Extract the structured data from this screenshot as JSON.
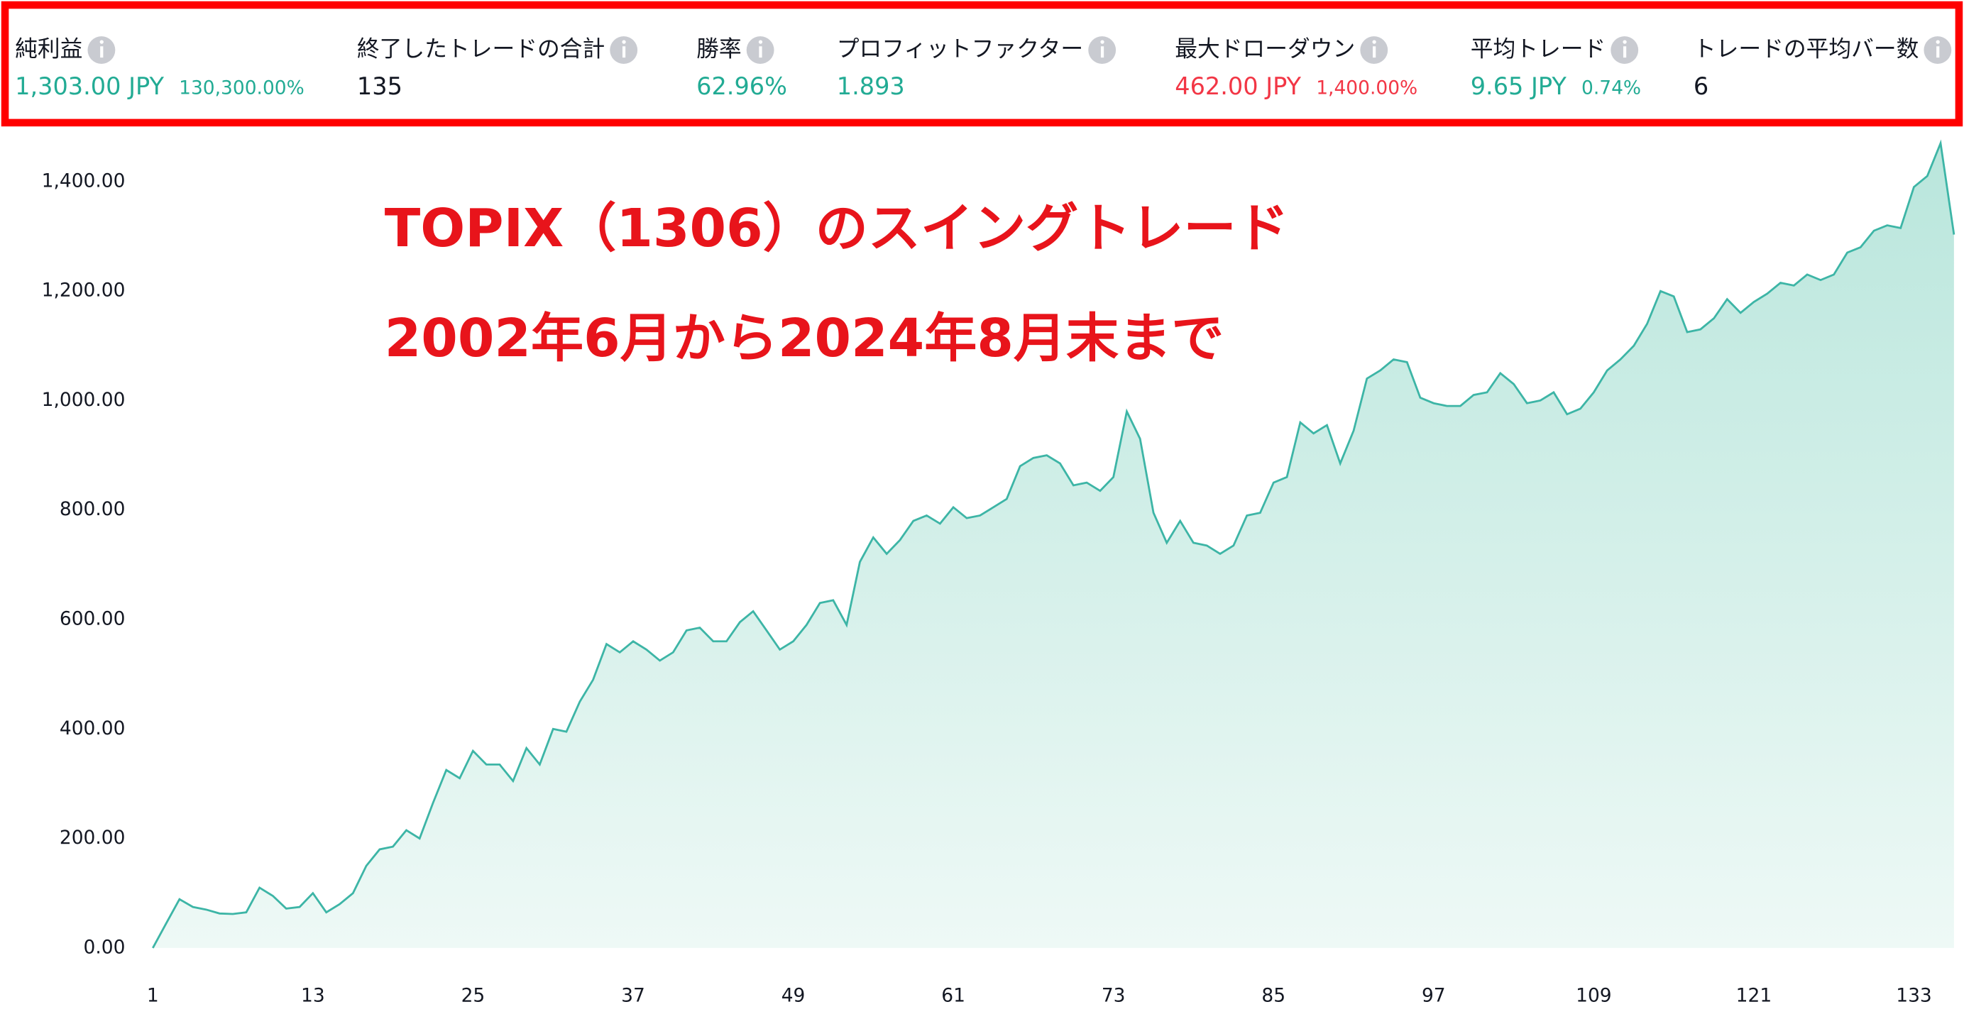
{
  "metrics": [
    {
      "label": "純利益",
      "value": "1,303.00 JPY",
      "sub": "130,300.00%",
      "color": "#22ab94"
    },
    {
      "label": "終了したトレードの合計",
      "value": "135",
      "color": "#131722"
    },
    {
      "label": "勝率",
      "value": "62.96%",
      "color": "#22ab94"
    },
    {
      "label": "プロフィットファクター",
      "value": "1.893",
      "color": "#22ab94"
    },
    {
      "label": "最大ドローダウン",
      "value": "462.00 JPY",
      "sub": "1,400.00%",
      "color": "#f23645"
    },
    {
      "label": "平均トレード",
      "value": "9.65 JPY",
      "sub": "0.74%",
      "color": "#22ab94"
    },
    {
      "label": "トレードの平均バー数",
      "value": "6",
      "color": "#131722"
    }
  ],
  "chart_data": {
    "type": "area",
    "annotations": [
      "TOPIX（1306）のスイングトレード",
      "2002年6月から2024年8月末まで"
    ],
    "x": [
      1,
      2,
      3,
      4,
      5,
      6,
      7,
      8,
      9,
      10,
      11,
      12,
      13,
      14,
      15,
      16,
      17,
      18,
      19,
      20,
      21,
      22,
      23,
      24,
      25,
      26,
      27,
      28,
      29,
      30,
      31,
      32,
      33,
      34,
      35,
      36,
      37,
      38,
      39,
      40,
      41,
      42,
      43,
      44,
      45,
      46,
      47,
      48,
      49,
      50,
      51,
      52,
      53,
      54,
      55,
      56,
      57,
      58,
      59,
      60,
      61,
      62,
      63,
      64,
      65,
      66,
      67,
      68,
      69,
      70,
      71,
      72,
      73,
      74,
      75,
      76,
      77,
      78,
      79,
      80,
      81,
      82,
      83,
      84,
      85,
      86,
      87,
      88,
      89,
      90,
      91,
      92,
      93,
      94,
      95,
      96,
      97,
      98,
      99,
      100,
      101,
      102,
      103,
      104,
      105,
      106,
      107,
      108,
      109,
      110,
      111,
      112,
      113,
      114,
      115,
      116,
      117,
      118,
      119,
      120,
      121,
      122,
      123,
      124,
      125,
      126,
      127,
      128,
      129,
      130,
      131,
      132,
      133,
      134,
      135,
      136
    ],
    "values": [
      0,
      45,
      89,
      75,
      70,
      63,
      62,
      65,
      110,
      95,
      72,
      75,
      100,
      65,
      80,
      100,
      150,
      180,
      185,
      215,
      200,
      265,
      325,
      310,
      360,
      335,
      335,
      305,
      365,
      335,
      400,
      395,
      450,
      490,
      555,
      540,
      560,
      545,
      525,
      540,
      580,
      585,
      560,
      560,
      595,
      615,
      580,
      545,
      560,
      590,
      630,
      635,
      590,
      705,
      750,
      720,
      745,
      780,
      790,
      775,
      805,
      785,
      790,
      805,
      820,
      880,
      895,
      900,
      885,
      845,
      850,
      835,
      860,
      980,
      930,
      795,
      740,
      780,
      740,
      735,
      720,
      735,
      790,
      795,
      850,
      860,
      960,
      940,
      955,
      885,
      945,
      1040,
      1055,
      1075,
      1070,
      1005,
      995,
      990,
      990,
      1010,
      1015,
      1050,
      1030,
      995,
      1000,
      1015,
      975,
      985,
      1015,
      1055,
      1075,
      1100,
      1140,
      1200,
      1190,
      1125,
      1130,
      1150,
      1185,
      1160,
      1180,
      1195,
      1215,
      1210,
      1230,
      1220,
      1230,
      1270,
      1280,
      1310,
      1320,
      1315,
      1390,
      1410,
      1470,
      1303
    ],
    "color": "#3db5a6",
    "xlim": [
      1,
      136
    ],
    "ylim": [
      -20,
      1480
    ],
    "xticks": [
      1,
      13,
      25,
      37,
      49,
      61,
      73,
      85,
      97,
      109,
      121,
      133
    ],
    "yticks": [
      {
        "value": 0,
        "label": "0.00"
      },
      {
        "value": 200,
        "label": "200.00"
      },
      {
        "value": 400,
        "label": "400.00"
      },
      {
        "value": 600,
        "label": "600.00"
      },
      {
        "value": 800,
        "label": "800.00"
      },
      {
        "value": 1000,
        "label": "1,000.00"
      },
      {
        "value": 1200,
        "label": "1,200.00"
      },
      {
        "value": 1400,
        "label": "1,400.00"
      }
    ]
  }
}
